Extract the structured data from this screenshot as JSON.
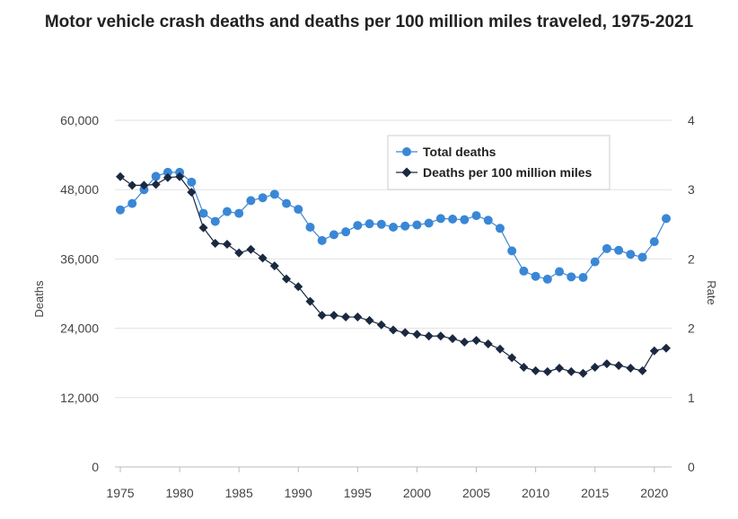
{
  "chart_data": {
    "type": "line",
    "title": "Motor vehicle crash deaths and deaths per 100 million miles traveled, 1975-2021",
    "ylabel": "Deaths",
    "y2label": "Rate",
    "x_ticks": [
      1975,
      1980,
      1985,
      1990,
      1995,
      2000,
      2005,
      2010,
      2015,
      2020
    ],
    "y_ticks": [
      "0",
      "12,000",
      "24,000",
      "36,000",
      "48,000",
      "60,000"
    ],
    "y2_ticks": [
      "0",
      "1",
      "2",
      "2",
      "3",
      "4"
    ],
    "xlim": [
      1975,
      2021
    ],
    "ylim": [
      0,
      60000
    ],
    "y2lim": [
      0,
      4
    ],
    "grid": true,
    "legend_position": "top-right",
    "colors": {
      "total": "#3a87d6",
      "rate": "#1a2940"
    },
    "x": [
      1975,
      1976,
      1977,
      1978,
      1979,
      1980,
      1981,
      1982,
      1983,
      1984,
      1985,
      1986,
      1987,
      1988,
      1989,
      1990,
      1991,
      1992,
      1993,
      1994,
      1995,
      1996,
      1997,
      1998,
      1999,
      2000,
      2001,
      2002,
      2003,
      2004,
      2005,
      2006,
      2007,
      2008,
      2009,
      2010,
      2011,
      2012,
      2013,
      2014,
      2015,
      2016,
      2017,
      2018,
      2019,
      2020,
      2021
    ],
    "series": [
      {
        "name": "Total deaths",
        "axis": "left",
        "values": [
          44500,
          45600,
          48000,
          50300,
          51000,
          51000,
          49300,
          43900,
          42500,
          44200,
          43900,
          46100,
          46600,
          47200,
          45600,
          44600,
          41500,
          39200,
          40200,
          40700,
          41800,
          42100,
          42000,
          41500,
          41700,
          41900,
          42200,
          43000,
          42900,
          42800,
          43500,
          42700,
          41300,
          37400,
          33900,
          33000,
          32500,
          33800,
          32900,
          32800,
          35500,
          37800,
          37500,
          36800,
          36300,
          39000,
          43000
        ]
      },
      {
        "name": "Deaths per 100 million miles",
        "axis": "right",
        "values": [
          3.35,
          3.25,
          3.25,
          3.26,
          3.34,
          3.35,
          3.17,
          2.76,
          2.58,
          2.57,
          2.47,
          2.51,
          2.41,
          2.32,
          2.17,
          2.08,
          1.91,
          1.75,
          1.75,
          1.73,
          1.73,
          1.69,
          1.64,
          1.58,
          1.55,
          1.53,
          1.51,
          1.51,
          1.48,
          1.44,
          1.46,
          1.42,
          1.36,
          1.26,
          1.15,
          1.11,
          1.1,
          1.14,
          1.1,
          1.08,
          1.15,
          1.19,
          1.17,
          1.14,
          1.11,
          1.34,
          1.37
        ]
      }
    ]
  }
}
